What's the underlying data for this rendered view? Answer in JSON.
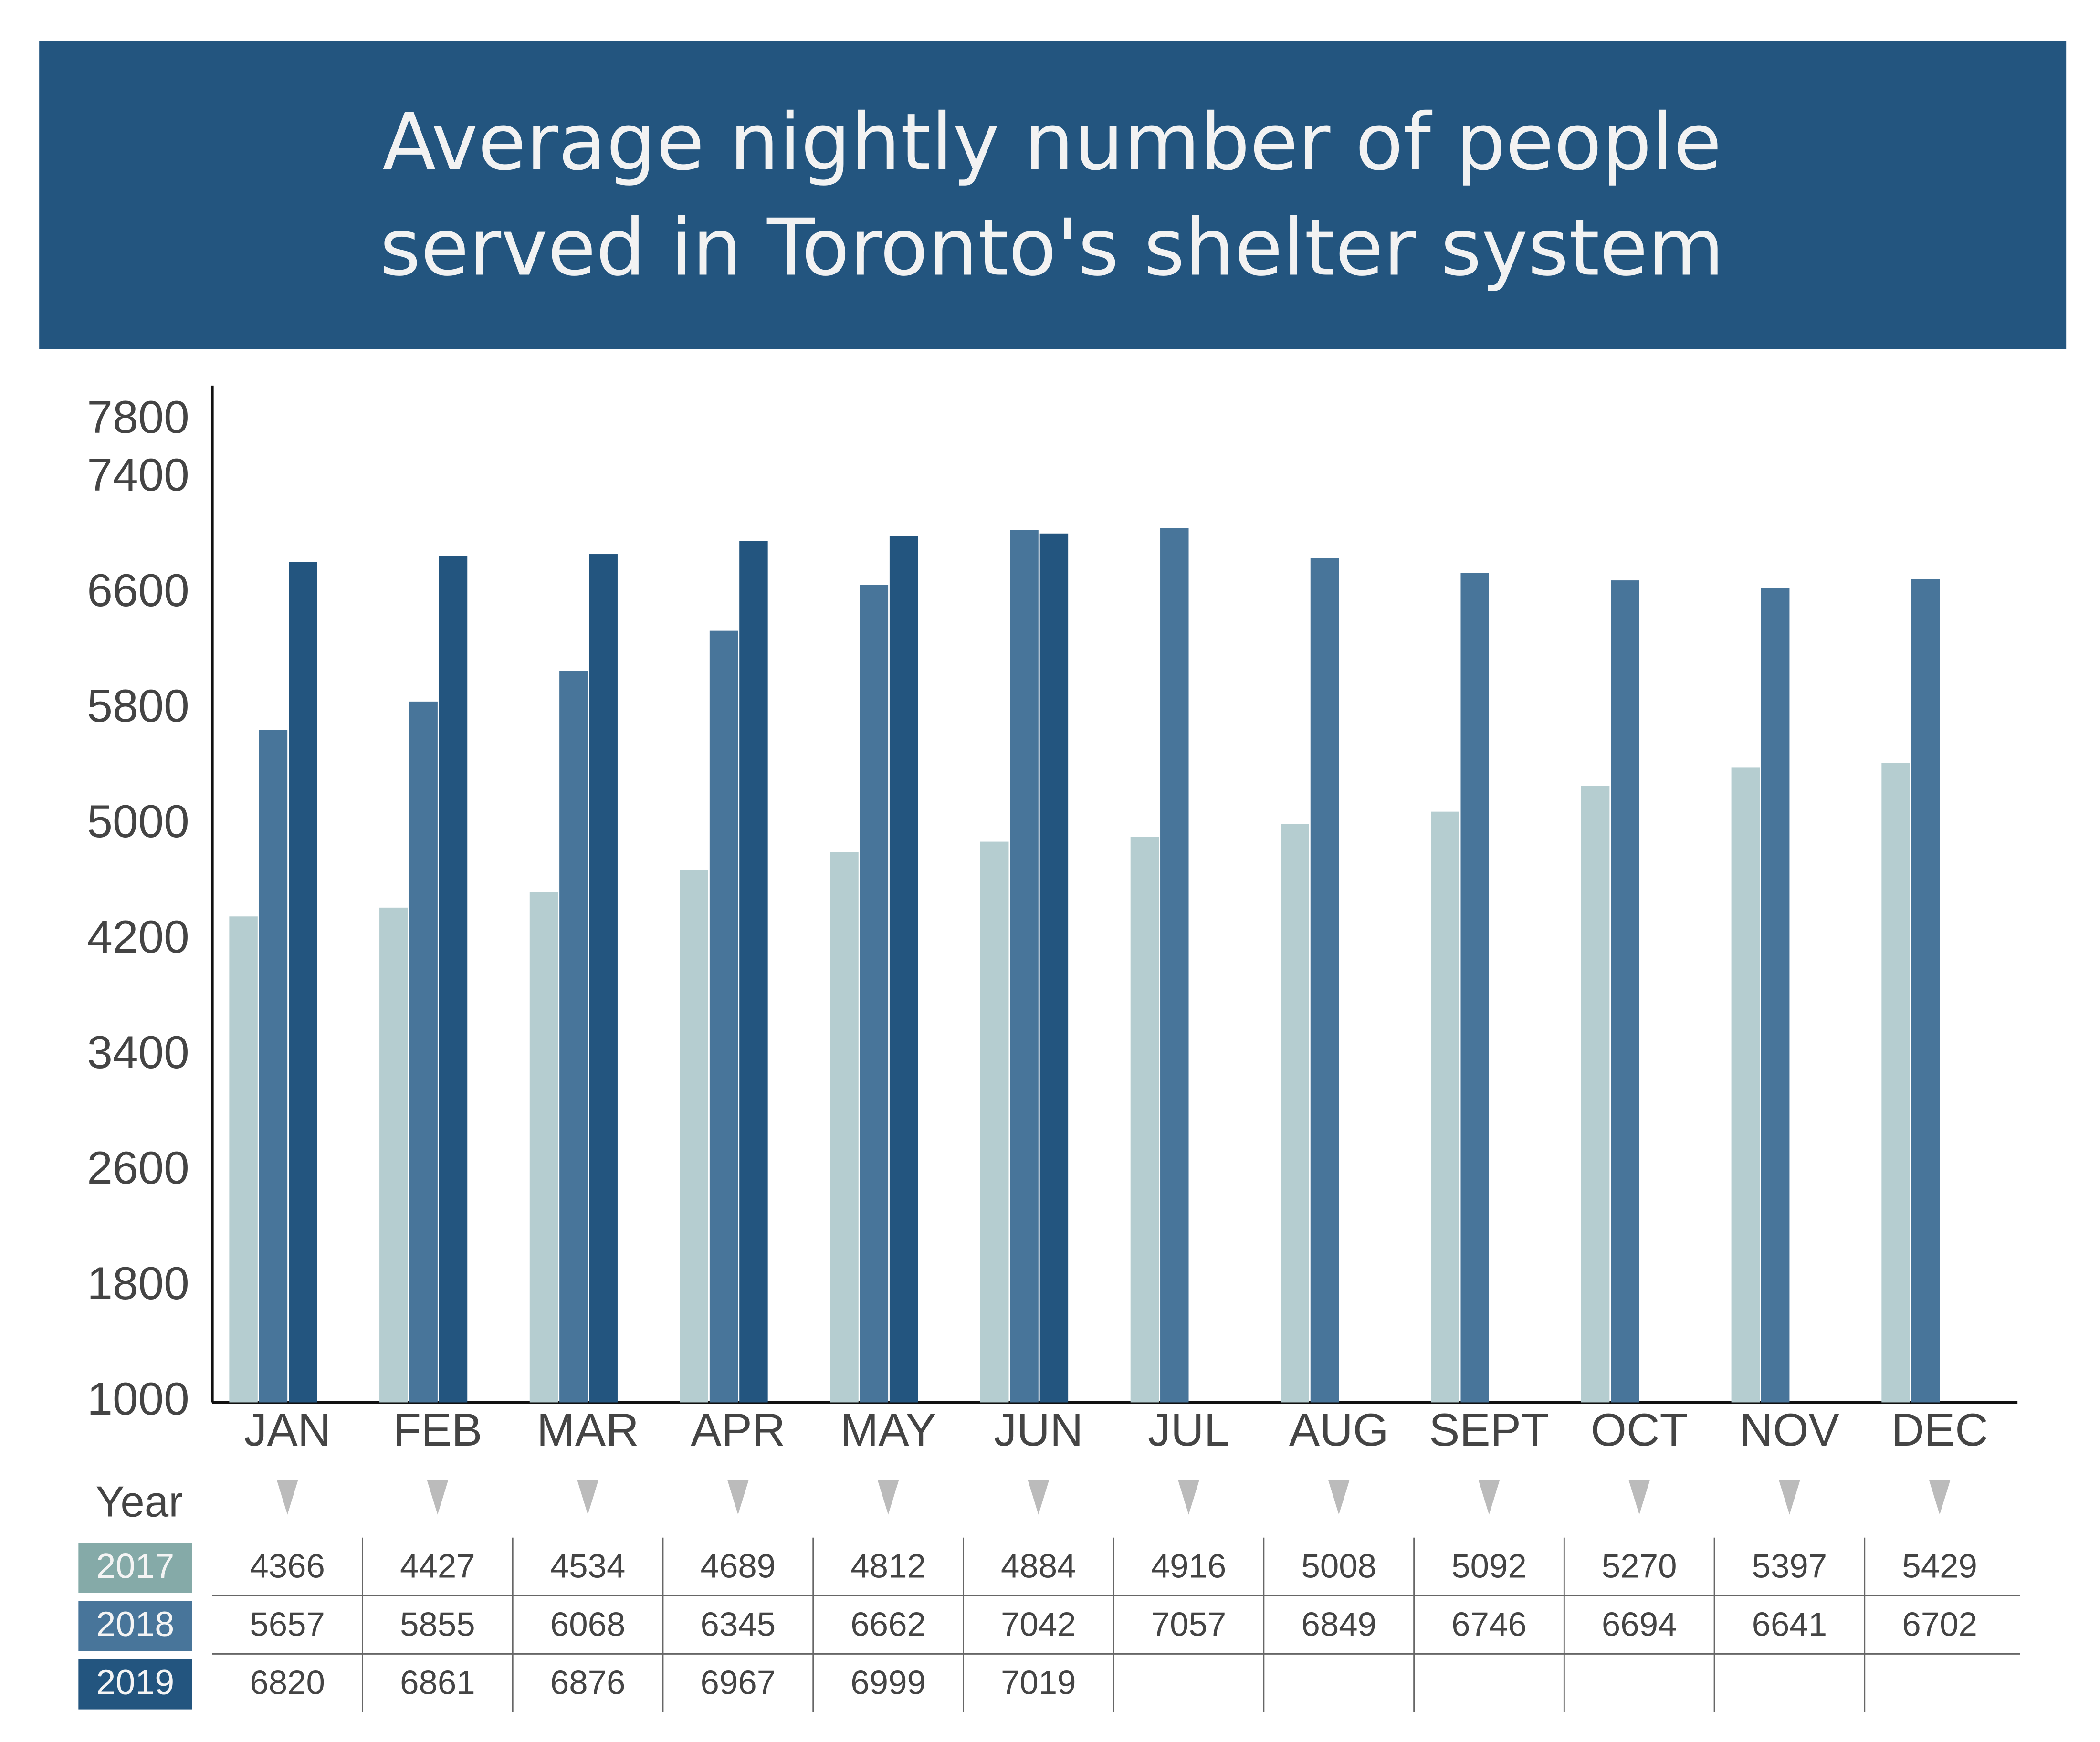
{
  "chart_data": {
    "type": "bar",
    "title": "Average nightly number of people served in Toronto's shelter system",
    "categories": [
      "JAN",
      "FEB",
      "MAR",
      "APR",
      "MAY",
      "JUN",
      "JUL",
      "AUG",
      "SEPT",
      "OCT",
      "NOV",
      "DEC"
    ],
    "table_header": "Year",
    "series": [
      {
        "name": "2017",
        "color": "#b5cdd0",
        "label_color": "#85aaa8",
        "values": [
          4366,
          4427,
          4534,
          4689,
          4812,
          4884,
          4916,
          5008,
          5092,
          5270,
          5397,
          5429
        ]
      },
      {
        "name": "2018",
        "color": "#48759a",
        "label_color": "#48759a",
        "values": [
          5657,
          5855,
          6068,
          6345,
          6662,
          7042,
          7057,
          6849,
          6746,
          6694,
          6641,
          6702
        ]
      },
      {
        "name": "2019",
        "color": "#23557f",
        "label_color": "#23557f",
        "values": [
          6820,
          6861,
          6876,
          6967,
          6999,
          7019,
          null,
          null,
          null,
          null,
          null,
          null
        ]
      }
    ],
    "ylim": [
      1000,
      7800
    ],
    "yticks": [
      1000,
      1800,
      2600,
      3400,
      4200,
      5000,
      5800,
      6600,
      7400,
      7800
    ],
    "grid": false
  }
}
